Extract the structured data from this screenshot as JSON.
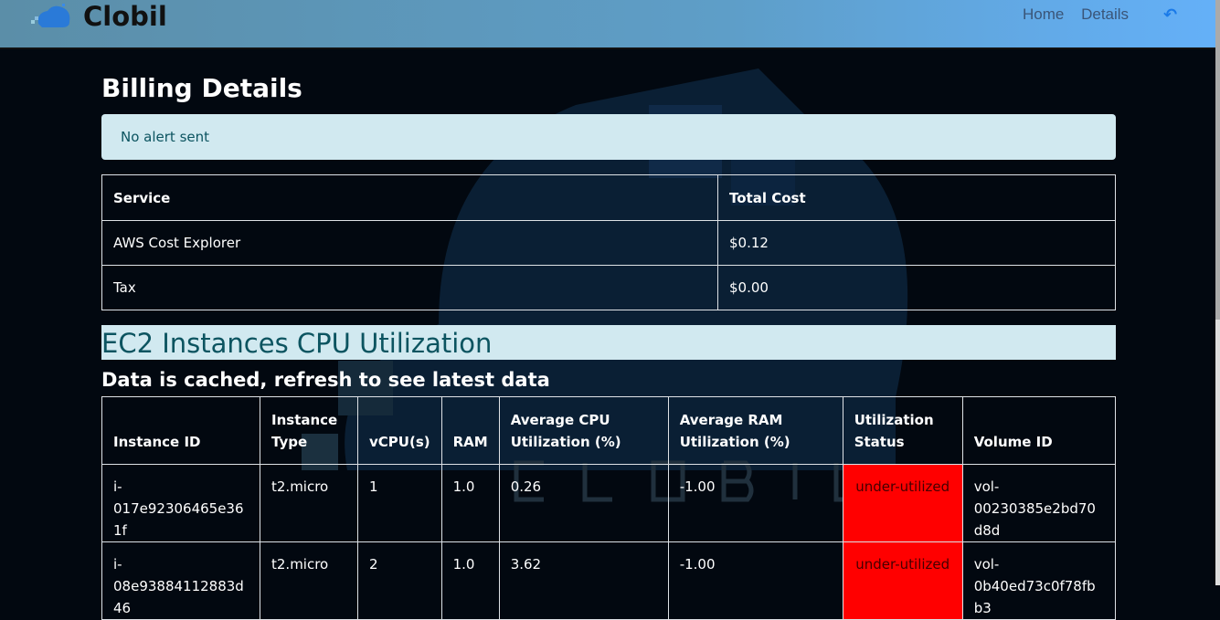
{
  "nav": {
    "brand": "Clobil",
    "links": [
      "Home",
      "Details"
    ],
    "back_icon": "reply-arrow-icon"
  },
  "watermark": "CLOBIL",
  "page_title": "Billing Details",
  "alert": "No alert sent",
  "billing": {
    "headers": [
      "Service",
      "Total Cost"
    ],
    "rows": [
      [
        "AWS Cost Explorer",
        "$0.12"
      ],
      [
        "Tax",
        "$0.00"
      ]
    ]
  },
  "ec2": {
    "title": "EC2 Instances CPU Utilization",
    "subtitle": "Data is cached, refresh to see latest data",
    "headers": [
      "Instance ID",
      "Instance Type",
      "vCPU(s)",
      "RAM",
      "Average CPU Utilization (%)",
      "Average RAM Utilization (%)",
      "Utilization Status",
      "Volume ID"
    ],
    "rows": [
      [
        "i-017e92306465e361f",
        "t2.micro",
        "1",
        "1.0",
        "0.26",
        "-1.00",
        "under-utilized",
        "vol-00230385e2bd70d8d"
      ],
      [
        "i-08e93884112883d46",
        "t2.micro",
        "2",
        "1.0",
        "3.62",
        "-1.00",
        "under-utilized",
        "vol-0b40ed73c0f78fbb3"
      ]
    ]
  },
  "colors": {
    "under_utilized": "#ff0000",
    "alert_bg": "#d1e9f0"
  }
}
